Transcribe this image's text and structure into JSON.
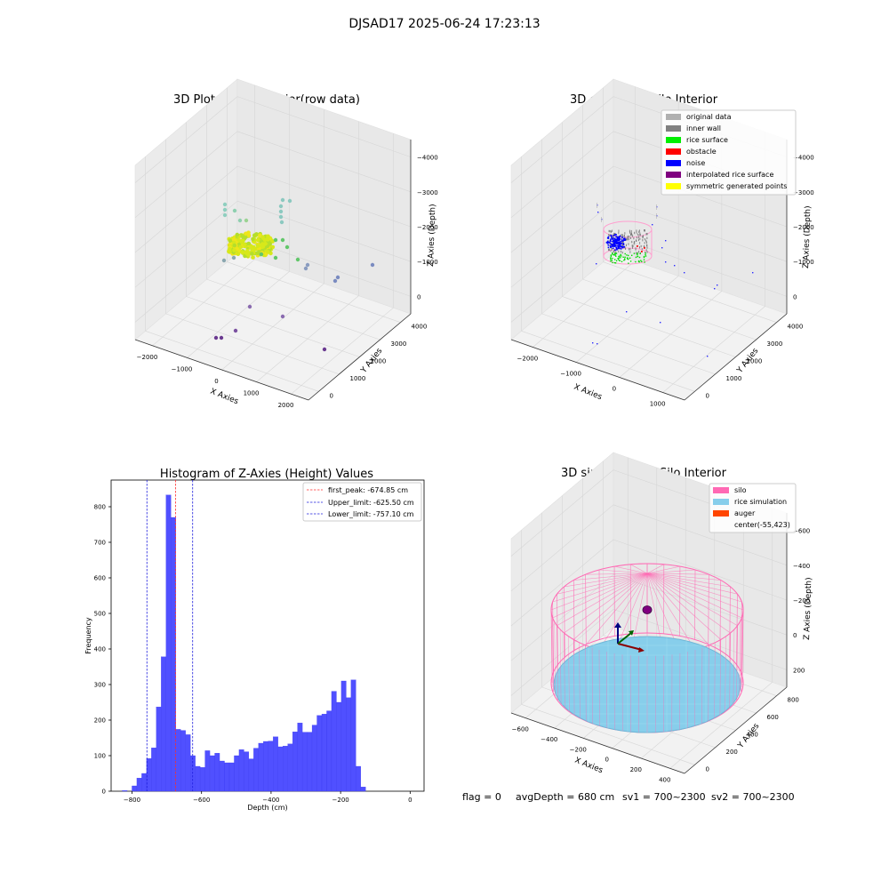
{
  "figure": {
    "suptitle": "DJSAD17 2025-06-24 17:23:13",
    "status": {
      "flag": "flag = 0",
      "avg": "avgDepth = 680 cm",
      "sv1": "sv1 = 700~2300",
      "sv2": "sv2 = 700~2300"
    }
  },
  "colors": {
    "hist_bar": "#5050ff",
    "hist_edge": "#3b3bf0",
    "peak_line": "#ff3030",
    "limit_line": "#2020dd",
    "silo": "#ff69b4",
    "rice_sim": "#87ceeb",
    "auger": "#ff4500",
    "pane": "#f2f2f2",
    "legend_original": "#b0b0b0",
    "legend_wall": "#808080",
    "legend_surface": "#00ee00",
    "legend_obstacle": "#ff0000",
    "legend_noise": "#0000ff",
    "legend_interp": "#800080",
    "legend_sym": "#ffff00"
  },
  "chart_data": [
    {
      "type": "scatter",
      "title": "3D Plot of Silo Interior(row data)",
      "xlabel": "X Axies",
      "ylabel": "Y Axies",
      "zlabel": "Z Axies (Depth)",
      "x_ticks": [
        "−2000",
        "−1000",
        "0",
        "1000",
        "2000"
      ],
      "y_ticks": [
        "0",
        "1000",
        "2000",
        "3000",
        "4000"
      ],
      "z_ticks": [
        "0",
        "−1000",
        "−2000",
        "−3000",
        "−4000"
      ]
    },
    {
      "type": "scatter",
      "title": "3D classify of Silo Interior",
      "xlabel": "X Axies",
      "ylabel": "Y Axies",
      "zlabel": "Z Axies (Depth)",
      "x_ticks": [
        "−2000",
        "−1000",
        "0",
        "1000"
      ],
      "y_ticks": [
        "0",
        "1000",
        "2000",
        "3000",
        "4000"
      ],
      "z_ticks": [
        "0",
        "−1000",
        "−2000",
        "−3000",
        "−4000"
      ],
      "legend": [
        "original data",
        "inner wall",
        "rice surface",
        "obstacle",
        "noise",
        "interpolated rice surface",
        "symmetric generated points"
      ]
    },
    {
      "type": "bar",
      "title": "Histogram of Z-Axies (Height) Values",
      "xlabel": "Depth (cm)",
      "ylabel": "Frequency",
      "xlim": [
        -860,
        40
      ],
      "ylim": [
        0,
        875
      ],
      "x_ticks": [
        -800,
        -600,
        -400,
        -200,
        0
      ],
      "x_tick_labels": [
        "−800",
        "−600",
        "−400",
        "−200",
        "0"
      ],
      "y_ticks": [
        0,
        100,
        200,
        300,
        400,
        500,
        600,
        700,
        800
      ],
      "bin_start": -828,
      "bin_width": 14,
      "values": [
        2,
        0,
        15,
        37,
        50,
        92,
        122,
        237,
        378,
        833,
        770,
        174,
        171,
        159,
        100,
        70,
        67,
        114,
        100,
        107,
        85,
        80,
        80,
        100,
        117,
        111,
        91,
        121,
        135,
        140,
        141,
        153,
        125,
        127,
        133,
        167,
        192,
        166,
        166,
        186,
        213,
        217,
        226,
        281,
        250,
        310,
        263,
        313,
        70,
        12
      ],
      "lines": [
        {
          "label": "first_peak: -674.85 cm",
          "x": -674.85,
          "style": "peak"
        },
        {
          "label": "Upper_limit: -625.50 cm",
          "x": -625.5,
          "style": "limit"
        },
        {
          "label": "Lower_limit: -757.10 cm",
          "x": -757.1,
          "style": "limit"
        }
      ],
      "legend_position": "top-right"
    },
    {
      "type": "scatter",
      "title": "3D simulation of Silo Interior",
      "xlabel": "X Axies",
      "ylabel": "Y Axies",
      "zlabel": "Z Axies (Depth)",
      "x_ticks": [
        "−600",
        "−400",
        "−200",
        "0",
        "200",
        "400"
      ],
      "y_ticks": [
        "0",
        "200",
        "400",
        "600",
        "800"
      ],
      "z_ticks": [
        "200",
        "0",
        "−200",
        "−400",
        "−600"
      ],
      "legend": [
        "silo",
        "rice simulation",
        "auger",
        "center(-55,423)"
      ]
    }
  ]
}
